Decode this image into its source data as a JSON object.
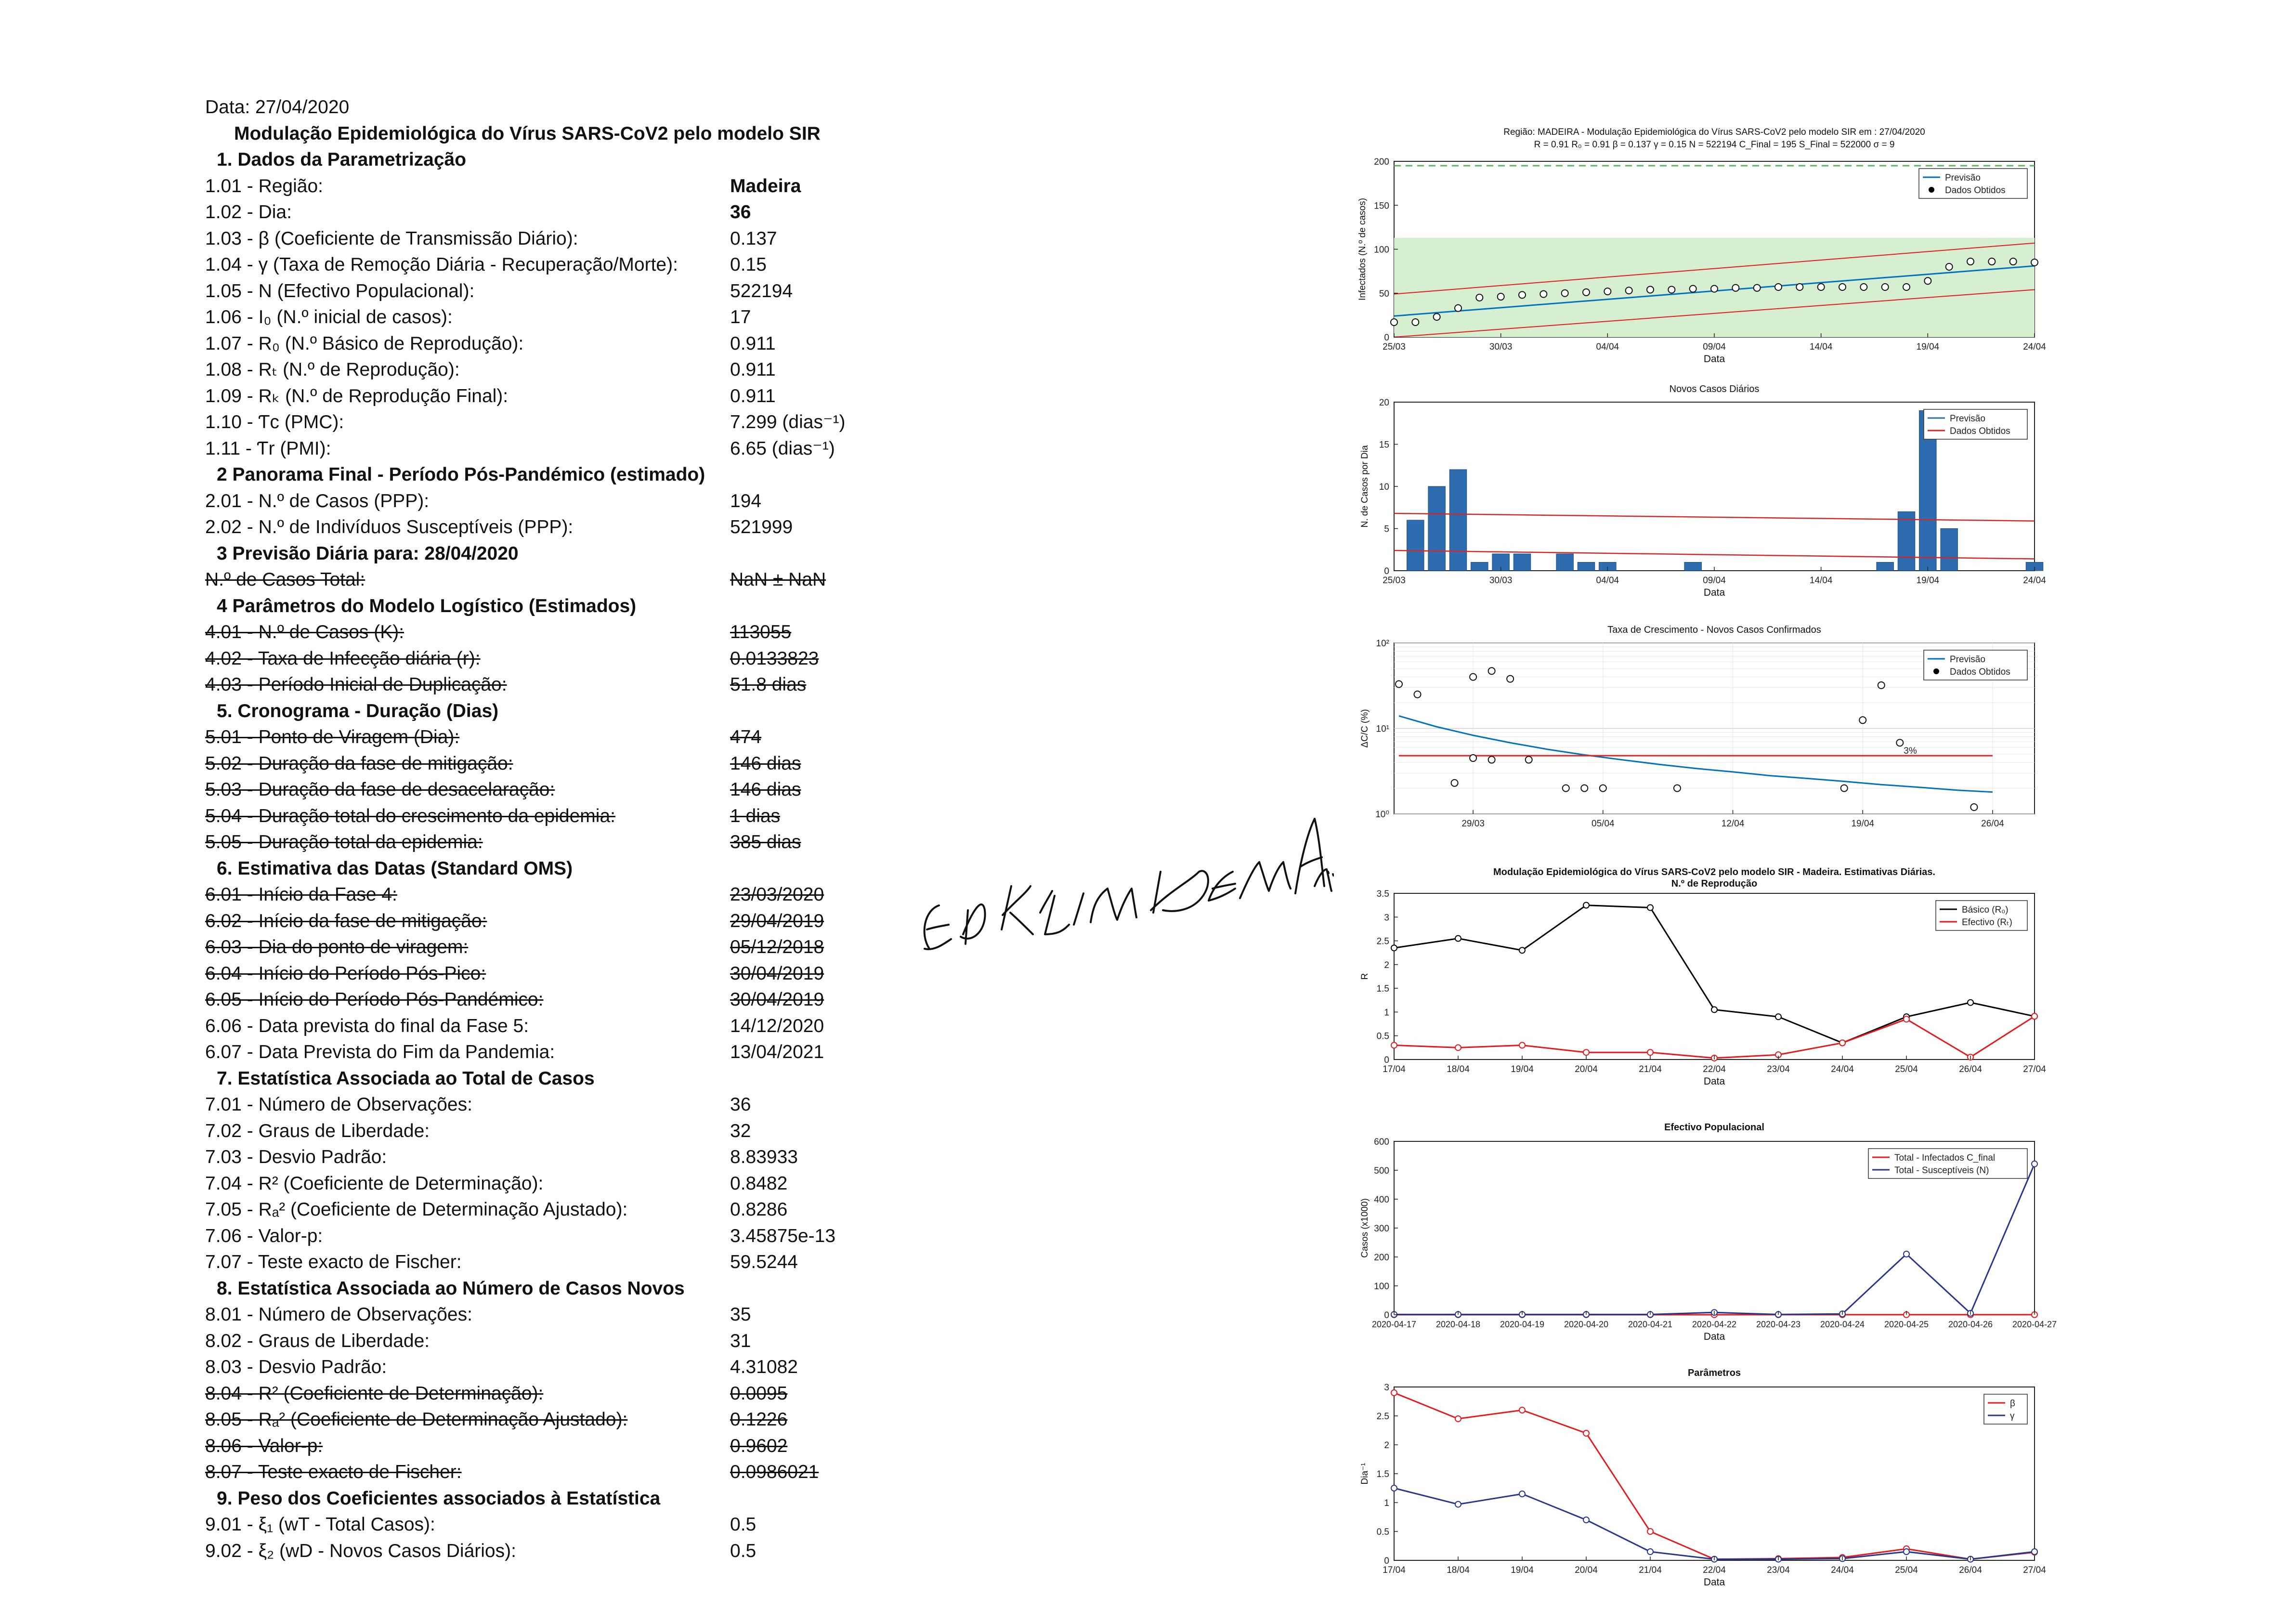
{
  "report": {
    "date": "Data: 27/04/2020",
    "title": "Modulação Epidemiológica do Vírus SARS-CoV2 pelo modelo SIR",
    "rows": [
      {
        "kind": "section",
        "label": "1.  Dados da Parametrização"
      },
      {
        "kind": "item",
        "label": "1.01 - Região:",
        "value": "Madeira",
        "bold": true
      },
      {
        "kind": "item",
        "label": "1.02 - Dia:",
        "value": "36",
        "bold": true
      },
      {
        "kind": "item",
        "label": "1.03 - β (Coeficiente de Transmissão Diário):",
        "value": "0.137"
      },
      {
        "kind": "item",
        "label": "1.04 - γ (Taxa de Remoção Diária - Recuperação/Morte):",
        "value": "0.15"
      },
      {
        "kind": "item",
        "label": "1.05 - N (Efectivo Populacional):",
        "value": "522194"
      },
      {
        "kind": "item",
        "label": "1.06 - I₀ (N.º inicial de casos):",
        "value": "17"
      },
      {
        "kind": "item",
        "label": "1.07 - R₀ (N.º Básico de Reprodução):",
        "value": "0.911"
      },
      {
        "kind": "item",
        "label": "1.08 - Rₜ (N.º de Reprodução):",
        "value": "0.911"
      },
      {
        "kind": "item",
        "label": "1.09 - Rₖ (N.º de Reprodução Final):",
        "value": "0.911"
      },
      {
        "kind": "item",
        "label": "1.10 - Ƭc (PMC):",
        "value": "7.299 (dias⁻¹)"
      },
      {
        "kind": "item",
        "label": "1.11 - Ƭr (PMI):",
        "value": "6.65 (dias⁻¹)"
      },
      {
        "kind": "section",
        "label": "2  Panorama Final - Período Pós-Pandémico (estimado)"
      },
      {
        "kind": "item",
        "label": "2.01 - N.º de Casos (PPP):",
        "value": "194"
      },
      {
        "kind": "item",
        "label": "2.02 - N.º de Indivíduos Susceptíveis (PPP):",
        "value": "521999"
      },
      {
        "kind": "section",
        "label": "3  Previsão Diária para: 28/04/2020"
      },
      {
        "kind": "item",
        "label": "N.º de Casos Total:",
        "value": "NaN ± NaN",
        "strike": true
      },
      {
        "kind": "section",
        "label": "4  Parâmetros do Modelo Logístico (Estimados)"
      },
      {
        "kind": "item",
        "label": "4.01 - N.º de Casos (K):",
        "value": "113055",
        "strike": true
      },
      {
        "kind": "item",
        "label": "4.02 - Taxa de Infecção diária (r):",
        "value": "0.0133823",
        "strike": true
      },
      {
        "kind": "item",
        "label": "4.03 - Período Inicial de Duplicação:",
        "value": "51.8 dias",
        "strike": true
      },
      {
        "kind": "section",
        "label": "5.  Cronograma - Duração (Dias)"
      },
      {
        "kind": "item",
        "label": "5.01 - Ponto de Viragem (Dia):",
        "value": "474",
        "strike": true
      },
      {
        "kind": "item",
        "label": "5.02 - Duração da fase de mitigação:",
        "value": "146 dias",
        "strike": true
      },
      {
        "kind": "item",
        "label": "5.03 - Duração da fase de desacelaração:",
        "value": "146 dias",
        "strike": true
      },
      {
        "kind": "item",
        "label": "5.04 - Duração total do crescimento da epidemia:",
        "value": "1 dias",
        "strike": true
      },
      {
        "kind": "item",
        "label": "5.05 - Duração total da epidemia:",
        "value": "385 dias",
        "strike": true
      },
      {
        "kind": "section",
        "label": "6. Estimativa das Datas (Standard OMS)"
      },
      {
        "kind": "item",
        "label": "6.01 - Início da Fase 4:",
        "value": "23/03/2020",
        "strike": true
      },
      {
        "kind": "item",
        "label": "6.02 - Início da fase de mitigação:",
        "value": "29/04/2019",
        "strike": true
      },
      {
        "kind": "item",
        "label": "6.03 - Dia do ponto de viragem:",
        "value": "05/12/2018",
        "strike": true
      },
      {
        "kind": "item",
        "label": "6.04 - Início do Período Pós-Pico:",
        "value": "30/04/2019",
        "strike": true
      },
      {
        "kind": "item",
        "label": "6.05 - Início do Período Pós-Pandémico:",
        "value": "30/04/2019",
        "strike": true
      },
      {
        "kind": "item",
        "label": "6.06 - Data prevista do final da Fase 5:",
        "value": "14/12/2020"
      },
      {
        "kind": "item",
        "label": "6.07 - Data Prevista do Fim da Pandemia:",
        "value": "13/04/2021"
      },
      {
        "kind": "section",
        "label": "7. Estatística Associada ao Total de Casos"
      },
      {
        "kind": "item",
        "label": "7.01 - Número de Observações:",
        "value": "36"
      },
      {
        "kind": "item",
        "label": "7.02 - Graus de Liberdade:",
        "value": "32"
      },
      {
        "kind": "item",
        "label": "7.03 - Desvio Padrão:",
        "value": "8.83933"
      },
      {
        "kind": "item",
        "label": "7.04 - R² (Coeficiente de Determinação):",
        "value": "0.8482"
      },
      {
        "kind": "item",
        "label": "7.05 - Rₐ² (Coeficiente de Determinação Ajustado):",
        "value": "0.8286"
      },
      {
        "kind": "item",
        "label": "7.06 - Valor-p:",
        "value": "3.45875e-13"
      },
      {
        "kind": "item",
        "label": "7.07 - Teste exacto de Fischer:",
        "value": "59.5244"
      },
      {
        "kind": "section",
        "label": "8. Estatística Associada ao Número de Casos Novos"
      },
      {
        "kind": "item",
        "label": "8.01 - Número de Observações:",
        "value": "35"
      },
      {
        "kind": "item",
        "label": "8.02 - Graus de Liberdade:",
        "value": "31"
      },
      {
        "kind": "item",
        "label": "8.03 - Desvio Padrão:",
        "value": "4.31082"
      },
      {
        "kind": "item",
        "label": "8.04 - R² (Coeficiente de Determinação):",
        "value": "0.0095",
        "strike": true
      },
      {
        "kind": "item",
        "label": "8.05 - Rₐ² (Coeficiente de Determinação Ajustado):",
        "value": "0.1226",
        "strike": true
      },
      {
        "kind": "item",
        "label": "8.06 - Valor-p:",
        "value": "0.9602",
        "strike": true
      },
      {
        "kind": "item",
        "label": "8.07 - Teste exacto de Fischer:",
        "value": "0.0986021",
        "strike": true
      },
      {
        "kind": "section",
        "label": "9. Peso dos Coeficientes associados à Estatística"
      },
      {
        "kind": "item",
        "label": "9.01 - ξ₁ (wT - Total Casos):",
        "value": "0.5"
      },
      {
        "kind": "item",
        "label": "9.02 - ξ₂ (wD - Novos Casos Diários):",
        "value": "0.5"
      }
    ]
  },
  "signature": {
    "text": "E. D. K. LINDEMANN"
  },
  "colors": {
    "blue": "#0072bd",
    "red": "#e41a1c",
    "darkred": "#d62728",
    "green_band": "#d6efd0",
    "green_dash": "#5fb25f",
    "bar": "#2e6cb0",
    "navy": "#26368c",
    "black": "#000000"
  },
  "chart_data": [
    {
      "type": "line",
      "title": "Região: MADEIRA - Modulação Epidemiológica do Vírus SARS-CoV2 pelo modelo SIR em : 27/04/2020",
      "subtitle": "R = 0.91  R₀ = 0.91  β = 0.137  γ = 0.15  N = 522194  C_Final = 195  S_Final = 522000  σ = 9",
      "xlabel": "Data",
      "ylabel": "Infectados (N.º de casos)",
      "xticks": [
        "25/03",
        "30/03",
        "04/04",
        "09/04",
        "14/04",
        "19/04",
        "24/04"
      ],
      "xlim": [
        0,
        30
      ],
      "ylim": [
        0,
        200
      ],
      "yticks": [
        0,
        50,
        100,
        150,
        200
      ],
      "legend": [
        "Previsão",
        "Dados Obtidos"
      ],
      "legend_position": "top-right",
      "hline_dashed": 195,
      "band": [
        0,
        113
      ],
      "series": [
        {
          "name": "Previsão",
          "x": [
            0,
            30
          ],
          "y": [
            24,
            81
          ]
        },
        {
          "x": [
            0,
            30
          ],
          "y": [
            49,
            107
          ]
        },
        {
          "x": [
            0,
            30
          ],
          "y": [
            0,
            54
          ]
        },
        {
          "name": "Dados Obtidos",
          "x": [
            0,
            1,
            2,
            3,
            4,
            5,
            6,
            7,
            8,
            9,
            10,
            11,
            12,
            13,
            14,
            15,
            16,
            17,
            18,
            19,
            20,
            21,
            22,
            23,
            24,
            25,
            26,
            27,
            28,
            29,
            30
          ],
          "y": [
            17,
            17,
            23,
            33,
            45,
            46,
            48,
            49,
            50,
            51,
            52,
            53,
            54,
            54,
            55,
            55,
            56,
            56,
            57,
            57,
            57,
            57,
            57,
            57,
            57,
            64,
            80,
            86,
            86,
            86,
            85
          ]
        }
      ]
    },
    {
      "type": "bar",
      "title": "Novos Casos Diários",
      "xlabel": "Data",
      "ylabel": "N. de Casos por Dia",
      "xticks": [
        "25/03",
        "30/03",
        "04/04",
        "09/04",
        "14/04",
        "19/04",
        "24/04"
      ],
      "xlim": [
        0,
        30
      ],
      "ylim": [
        0,
        20
      ],
      "yticks": [
        0,
        5,
        10,
        15,
        20
      ],
      "legend": [
        "Previsão",
        "Dados Obtidos"
      ],
      "legend_position": "top-right",
      "bars": {
        "x": [
          1,
          2,
          3,
          4,
          5,
          6,
          8,
          9,
          10,
          14,
          23,
          24,
          25,
          26,
          30
        ],
        "values": [
          6,
          10,
          12,
          1,
          2,
          2,
          2,
          1,
          1,
          1,
          1,
          7,
          19,
          5,
          1
        ]
      },
      "lines": [
        {
          "x": [
            0,
            30
          ],
          "y": [
            6.8,
            5.9
          ]
        },
        {
          "x": [
            0,
            30
          ],
          "y": [
            2.4,
            1.4
          ]
        }
      ]
    },
    {
      "type": "line",
      "title": "Taxa de Crescimento - Novos Casos Confirmados",
      "xlabel": "",
      "ylabel": "ΔC/C (%)",
      "scale_y": "log",
      "ylim": [
        1,
        100
      ],
      "ytick_labels": [
        "10⁰",
        "10¹",
        "10²"
      ],
      "xticks": [
        "29/03",
        "05/04",
        "12/04",
        "19/04",
        "26/04"
      ],
      "xlim": [
        0,
        34
      ],
      "legend": [
        "Previsão",
        "Dados Obtidos"
      ],
      "legend_position": "top-right",
      "annotation": "3%",
      "series": [
        {
          "name": "Previsão",
          "x": [
            0,
            2,
            4,
            6,
            8,
            10,
            12,
            14,
            16,
            18,
            20,
            22,
            24,
            26,
            28,
            30,
            32
          ],
          "y": [
            14,
            10.5,
            8.3,
            6.8,
            5.7,
            4.9,
            4.3,
            3.8,
            3.4,
            3.1,
            2.8,
            2.6,
            2.4,
            2.2,
            2.05,
            1.9,
            1.8
          ]
        },
        {
          "x": [
            0,
            32
          ],
          "y": [
            4.8,
            4.8
          ]
        },
        {
          "name": "Dados Obtidos",
          "x": [
            0,
            1,
            4,
            5,
            6,
            3,
            4,
            5,
            7,
            9,
            10,
            11,
            15,
            24,
            25,
            26,
            27,
            31
          ],
          "y": [
            33,
            25,
            40,
            47,
            38,
            2.3,
            4.5,
            4.3,
            4.3,
            2.0,
            2.0,
            2.0,
            2.0,
            2.0,
            12.5,
            32,
            6.8,
            1.2
          ]
        }
      ]
    },
    {
      "type": "line",
      "title": "Modulação Epidemiológica do Vírus SARS-CoV2 pelo modelo SIR - Madeira. Estimativas Diárias.",
      "subtitle": "N.º de Reprodução",
      "xlabel": "Data",
      "ylabel": "R",
      "categories": [
        "17/04",
        "18/04",
        "19/04",
        "20/04",
        "21/04",
        "22/04",
        "23/04",
        "24/04",
        "25/04",
        "26/04",
        "27/04"
      ],
      "ylim": [
        0,
        3.5
      ],
      "yticks": [
        0,
        0.5,
        1,
        1.5,
        2,
        2.5,
        3,
        3.5
      ],
      "legend": [
        "Básico (R₀)",
        "Efectivo (Rₜ)"
      ],
      "legend_position": "top-right",
      "series": [
        {
          "name": "Básico (R₀)",
          "values": [
            2.35,
            2.55,
            2.3,
            3.25,
            3.2,
            1.05,
            0.9,
            0.35,
            0.9,
            1.2,
            0.91
          ]
        },
        {
          "name": "Efectivo (Rₜ)",
          "values": [
            0.3,
            0.25,
            0.3,
            0.15,
            0.15,
            0.03,
            0.1,
            0.35,
            0.85,
            0.05,
            0.91
          ]
        }
      ]
    },
    {
      "type": "line",
      "title": "Efectivo Populacional",
      "xlabel": "Data",
      "ylabel": "Casos (x1000)",
      "categories": [
        "2020-04-17",
        "2020-04-18",
        "2020-04-19",
        "2020-04-20",
        "2020-04-21",
        "2020-04-22",
        "2020-04-23",
        "2020-04-24",
        "2020-04-25",
        "2020-04-26",
        "2020-04-27"
      ],
      "ylim": [
        0,
        600
      ],
      "yticks": [
        0,
        100,
        200,
        300,
        400,
        500,
        600
      ],
      "legend": [
        "Total - Infectados C_final",
        "Total - Susceptíveis (N)"
      ],
      "legend_position": "top-right",
      "series": [
        {
          "name": "Total - Infectados C_final",
          "values": [
            0.05,
            0.06,
            0.07,
            0.08,
            0.09,
            0.1,
            0.11,
            0.12,
            0.13,
            0.14,
            0.2
          ]
        },
        {
          "name": "Total - Susceptíveis (N)",
          "values": [
            1,
            1,
            1,
            1,
            1,
            8,
            1,
            3,
            210,
            5,
            522
          ]
        }
      ]
    },
    {
      "type": "line",
      "title": "Parâmetros",
      "xlabel": "Data",
      "ylabel": "Dia⁻¹",
      "categories": [
        "17/04",
        "18/04",
        "19/04",
        "20/04",
        "21/04",
        "22/04",
        "23/04",
        "24/04",
        "25/04",
        "26/04",
        "27/04"
      ],
      "ylim": [
        0,
        3
      ],
      "yticks": [
        0,
        0.5,
        1,
        1.5,
        2,
        2.5,
        3
      ],
      "legend": [
        "β",
        "γ"
      ],
      "legend_position": "top-right",
      "series": [
        {
          "name": "β",
          "values": [
            2.9,
            2.45,
            2.6,
            2.2,
            0.5,
            0.02,
            0.03,
            0.05,
            0.2,
            0.02,
            0.14
          ]
        },
        {
          "name": "γ",
          "values": [
            1.25,
            0.97,
            1.15,
            0.7,
            0.15,
            0.02,
            0.02,
            0.03,
            0.15,
            0.02,
            0.15
          ]
        }
      ]
    }
  ]
}
